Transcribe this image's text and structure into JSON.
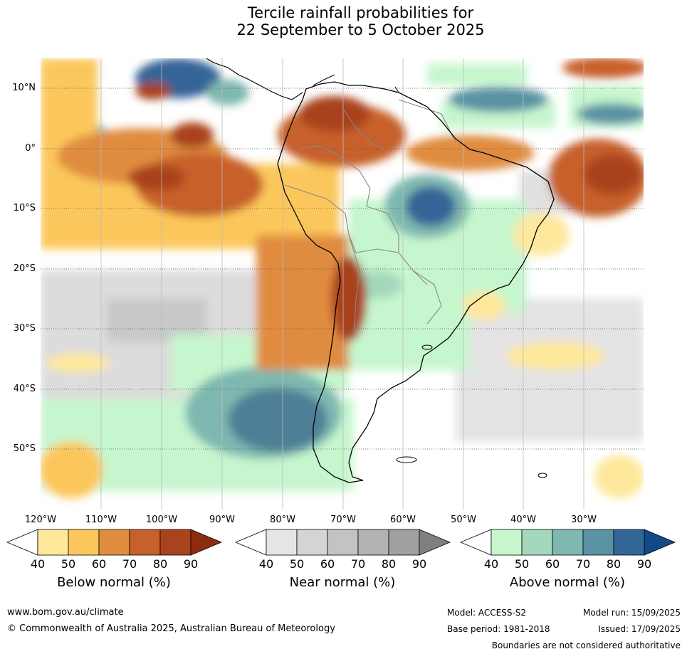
{
  "title": {
    "line1": "Tercile rainfall probabilities for",
    "line2": "22 September to 5 October 2025"
  },
  "lat_labels": [
    "10°N",
    "0°",
    "10°S",
    "20°S",
    "30°S",
    "40°S",
    "50°S"
  ],
  "lon_labels": [
    "120°W",
    "110°W",
    "100°W",
    "90°W",
    "80°W",
    "70°W",
    "60°W",
    "50°W",
    "40°W",
    "30°W"
  ],
  "colorbars": [
    {
      "title": "Below normal (%)",
      "ticks": [
        "40",
        "50",
        "60",
        "70",
        "80",
        "90"
      ],
      "colors": [
        "#ffffff",
        "#fee89b",
        "#fbc75c",
        "#e08c3f",
        "#c7602b",
        "#a9431e",
        "#8c2d12"
      ]
    },
    {
      "title": "Near normal (%)",
      "ticks": [
        "40",
        "50",
        "60",
        "70",
        "80",
        "90"
      ],
      "colors": [
        "#ffffff",
        "#e5e5e5",
        "#d4d4d4",
        "#c3c3c3",
        "#b2b2b2",
        "#a0a0a0",
        "#7f7f7f"
      ]
    },
    {
      "title": "Above normal (%)",
      "ticks": [
        "40",
        "50",
        "60",
        "70",
        "80",
        "90"
      ],
      "colors": [
        "#ffffff",
        "#c6f6ce",
        "#a4d8bd",
        "#7fb8b0",
        "#5a93a3",
        "#346597",
        "#114a86"
      ]
    }
  ],
  "footer": {
    "url": "www.bom.gov.au/climate",
    "copyright": "© Commonwealth of Australia 2025, Australian Bureau of Meteorology",
    "model": "Model: ACCESS-S2",
    "base_period": "Base period: 1981-2018",
    "model_run": "Model run: 15/09/2025",
    "issued": "Issued: 17/09/2025",
    "disclaimer": "Boundaries are not considered authoritative"
  }
}
